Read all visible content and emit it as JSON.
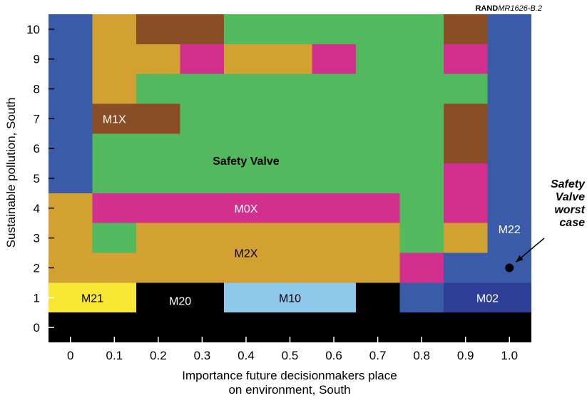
{
  "chart_data": {
    "type": "heatmap",
    "source_note": {
      "bold": "RAND",
      "italic": "MR1626-B.2"
    },
    "xlabel_line1": "Importance future decisionmakers place",
    "xlabel_line2": "on environment, South",
    "ylabel": "Sustainable pollution, South",
    "x_ticks": [
      "0",
      "0.1",
      "0.2",
      "0.3",
      "0.4",
      "0.5",
      "0.6",
      "0.7",
      "0.8",
      "0.9",
      "1.0"
    ],
    "y_ticks": [
      "0",
      "1",
      "2",
      "3",
      "4",
      "5",
      "6",
      "7",
      "8",
      "9",
      "10"
    ],
    "xlim": [
      -0.05,
      1.05
    ],
    "ylim": [
      -0.5,
      10.5
    ],
    "colors": {
      "blue": "#3a5ca8",
      "tan": "#d2a132",
      "brown": "#8b4d25",
      "green": "#52b95f",
      "magenta": "#d22f8e",
      "black": "#000000",
      "yellow": "#f7e835",
      "lightblue": "#8ec8ea",
      "darkblue": "#2f3f98"
    },
    "cells": [
      {
        "x0": -0.05,
        "x1": 1.05,
        "y0": -0.5,
        "y1": 10.5,
        "color": "green"
      },
      {
        "x0": -0.05,
        "x1": 0.05,
        "y0": 4.5,
        "y1": 10.5,
        "color": "blue"
      },
      {
        "x0": 0.05,
        "x1": 0.15,
        "y0": 7.5,
        "y1": 10.5,
        "color": "tan"
      },
      {
        "x0": 0.15,
        "x1": 0.35,
        "y0": 9.5,
        "y1": 10.5,
        "color": "brown"
      },
      {
        "x0": 0.15,
        "x1": 0.25,
        "y0": 8.5,
        "y1": 9.5,
        "color": "tan"
      },
      {
        "x0": 0.25,
        "x1": 0.35,
        "y0": 8.5,
        "y1": 9.5,
        "color": "magenta"
      },
      {
        "x0": 0.35,
        "x1": 0.55,
        "y0": 8.5,
        "y1": 9.5,
        "color": "tan"
      },
      {
        "x0": 0.55,
        "x1": 0.65,
        "y0": 8.5,
        "y1": 9.5,
        "color": "magenta"
      },
      {
        "x0": 0.85,
        "x1": 0.95,
        "y0": 9.5,
        "y1": 10.5,
        "color": "brown"
      },
      {
        "x0": 0.85,
        "x1": 0.95,
        "y0": 8.5,
        "y1": 9.5,
        "color": "magenta"
      },
      {
        "x0": 0.95,
        "x1": 1.05,
        "y0": 1.5,
        "y1": 10.5,
        "color": "blue"
      },
      {
        "x0": 0.05,
        "x1": 0.25,
        "y0": 5.5,
        "y1": 7.5,
        "color": "green"
      },
      {
        "x0": 0.05,
        "x1": 0.25,
        "y0": 6.5,
        "y1": 7.5,
        "color": "brown"
      },
      {
        "x0": 0.85,
        "x1": 0.95,
        "y0": 5.5,
        "y1": 7.5,
        "color": "brown"
      },
      {
        "x0": 0.85,
        "x1": 0.95,
        "y0": 3.5,
        "y1": 5.5,
        "color": "magenta"
      },
      {
        "x0": 0.85,
        "x1": 0.95,
        "y0": 2.5,
        "y1": 3.5,
        "color": "tan"
      },
      {
        "x0": 0.85,
        "x1": 0.95,
        "y0": 1.5,
        "y1": 2.5,
        "color": "blue"
      },
      {
        "x0": -0.05,
        "x1": 0.05,
        "y0": 1.5,
        "y1": 4.5,
        "color": "tan"
      },
      {
        "x0": 0.05,
        "x1": 0.75,
        "y0": 3.5,
        "y1": 4.5,
        "color": "magenta"
      },
      {
        "x0": 0.05,
        "x1": 0.75,
        "y0": 1.5,
        "y1": 3.5,
        "color": "tan"
      },
      {
        "x0": 0.05,
        "x1": 0.15,
        "y0": 2.5,
        "y1": 3.5,
        "color": "green"
      },
      {
        "x0": 0.75,
        "x1": 0.85,
        "y0": 1.5,
        "y1": 2.5,
        "color": "magenta"
      },
      {
        "x0": -0.05,
        "x1": 1.05,
        "y0": -0.5,
        "y1": 1.5,
        "color": "black"
      },
      {
        "x0": -0.05,
        "x1": 0.15,
        "y0": 0.5,
        "y1": 1.5,
        "color": "yellow"
      },
      {
        "x0": 0.35,
        "x1": 0.65,
        "y0": 0.5,
        "y1": 1.5,
        "color": "lightblue"
      },
      {
        "x0": 0.75,
        "x1": 0.85,
        "y0": 0.5,
        "y1": 1.5,
        "color": "blue"
      },
      {
        "x0": 0.85,
        "x1": 1.05,
        "y0": 0.5,
        "y1": 1.5,
        "color": "darkblue"
      }
    ],
    "region_labels": [
      {
        "text": "M1X",
        "x": 0.1,
        "y": 7.0,
        "color": "#ffffff",
        "bold": false
      },
      {
        "text": "Safety Valve",
        "x": 0.4,
        "y": 5.6,
        "color": "#000000",
        "bold": true
      },
      {
        "text": "M0X",
        "x": 0.4,
        "y": 4.0,
        "color": "#ffffff",
        "bold": false
      },
      {
        "text": "M2X",
        "x": 0.4,
        "y": 2.5,
        "color": "#000000",
        "bold": false
      },
      {
        "text": "M22",
        "x": 1.0,
        "y": 3.3,
        "color": "#ffffff",
        "bold": false
      },
      {
        "text": "M21",
        "x": 0.05,
        "y": 1.0,
        "color": "#000000",
        "bold": false
      },
      {
        "text": "M20",
        "x": 0.25,
        "y": 0.9,
        "color": "#ffffff",
        "bold": false
      },
      {
        "text": "M10",
        "x": 0.5,
        "y": 1.0,
        "color": "#000000",
        "bold": false
      },
      {
        "text": "M02",
        "x": 0.95,
        "y": 1.0,
        "color": "#ffffff",
        "bold": false
      }
    ],
    "marker": {
      "x": 1.0,
      "y": 2.0
    },
    "annotation": {
      "lines": [
        "Safety",
        "Valve",
        "worst",
        "case"
      ]
    }
  }
}
